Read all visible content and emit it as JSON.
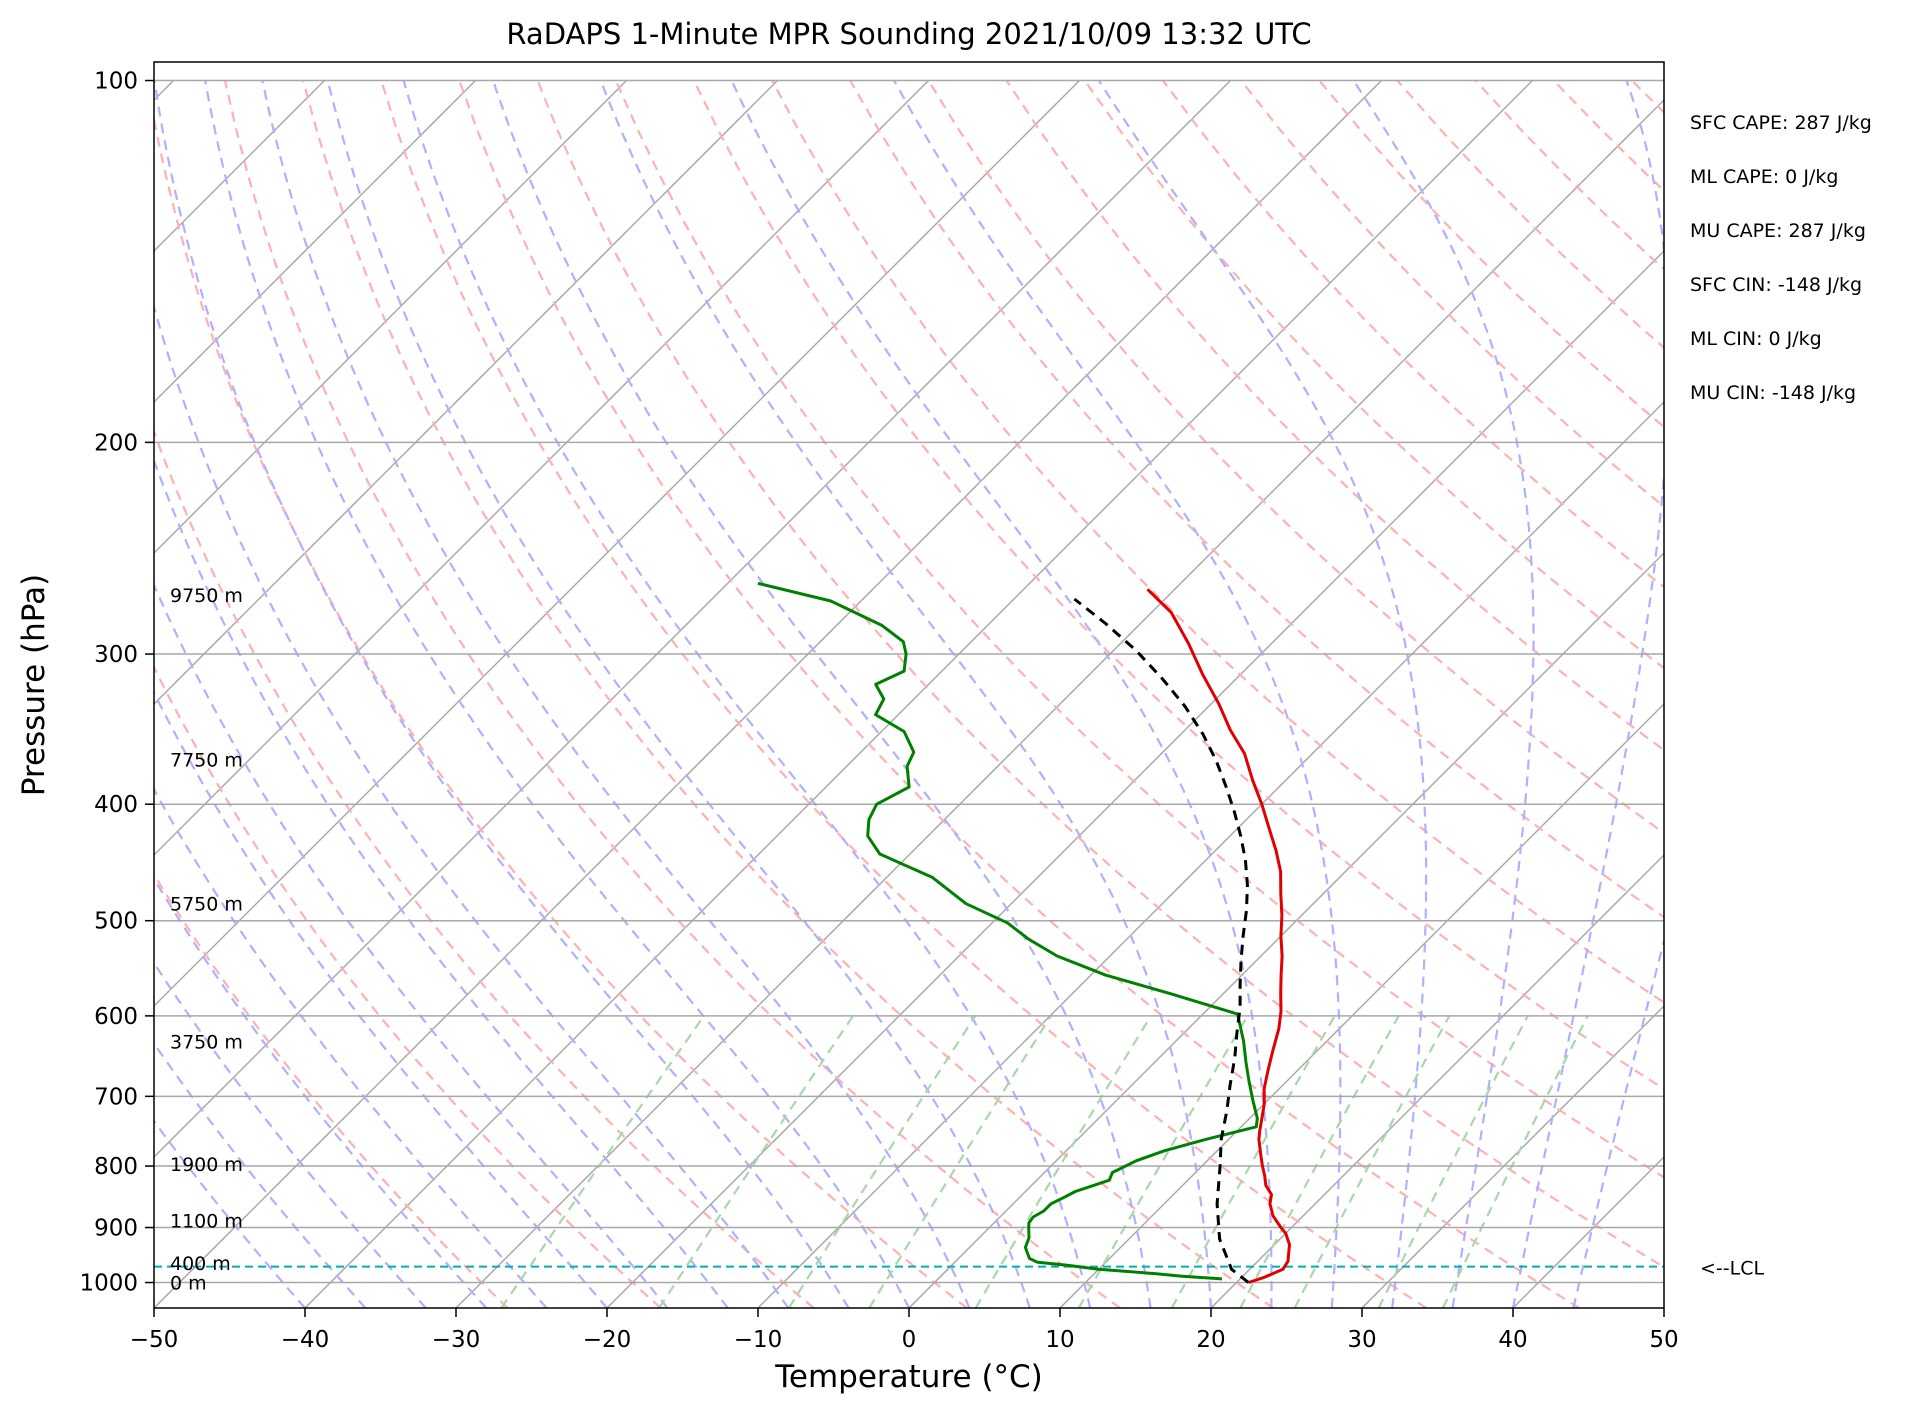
{
  "chart_data": {
    "type": "line",
    "title": "RaDAPS 1-Minute MPR Sounding 2021/10/09 13:32 UTC",
    "xlabel": "Temperature (°C)",
    "ylabel": "Pressure (hPa)",
    "xlim": [
      -50,
      50
    ],
    "ylim": [
      1050,
      100
    ],
    "y_scale": "log",
    "x_ticks": [
      "−50",
      "−40",
      "−30",
      "−20",
      "−10",
      "0",
      "10",
      "20",
      "30",
      "40",
      "50"
    ],
    "y_ticks": [
      "100",
      "200",
      "300",
      "400",
      "500",
      "600",
      "700",
      "800",
      "900",
      "1000"
    ],
    "grid": true,
    "skew": true,
    "series": [
      {
        "color": "#e00000",
        "points": [
          [
            20.8,
            1000
          ],
          [
            21.5,
            990
          ],
          [
            22.2,
            975
          ],
          [
            22.0,
            960
          ],
          [
            21.5,
            945
          ],
          [
            21.0,
            930
          ],
          [
            20.0,
            910
          ],
          [
            19.3,
            900
          ],
          [
            18.0,
            880
          ],
          [
            17.0,
            860
          ],
          [
            16.5,
            845
          ],
          [
            15.5,
            830
          ],
          [
            14.8,
            815
          ],
          [
            14.0,
            800
          ],
          [
            13.0,
            780
          ],
          [
            12.0,
            760
          ],
          [
            11.5,
            748
          ],
          [
            11.0,
            735
          ],
          [
            10.0,
            710
          ],
          [
            9.0,
            690
          ],
          [
            8.0,
            665
          ],
          [
            7.0,
            640
          ],
          [
            6.0,
            615
          ],
          [
            5.0,
            595
          ],
          [
            3.8,
            575
          ],
          [
            2.6,
            555
          ],
          [
            1.4,
            535
          ],
          [
            0.0,
            515
          ],
          [
            -1.3,
            495
          ],
          [
            -2.8,
            475
          ],
          [
            -4.3,
            455
          ],
          [
            -6.0,
            437
          ],
          [
            -7.8,
            420
          ],
          [
            -10.0,
            400
          ],
          [
            -12.2,
            382
          ],
          [
            -14.5,
            363
          ],
          [
            -17.0,
            347
          ],
          [
            -19.5,
            330
          ],
          [
            -22.5,
            312
          ],
          [
            -25.5,
            294
          ],
          [
            -28.7,
            277
          ],
          [
            -31.8,
            265
          ]
        ]
      },
      {
        "color": "#008000",
        "points": [
          [
            18.8,
            993
          ],
          [
            16.0,
            988
          ],
          [
            14.0,
            983
          ],
          [
            10.0,
            975
          ],
          [
            7.5,
            967
          ],
          [
            5.5,
            962
          ],
          [
            4.7,
            955
          ],
          [
            4.2,
            945
          ],
          [
            3.7,
            935
          ],
          [
            3.3,
            918
          ],
          [
            2.6,
            900
          ],
          [
            2.3,
            892
          ],
          [
            2.2,
            882
          ],
          [
            2.5,
            872
          ],
          [
            2.5,
            860
          ],
          [
            3.0,
            848
          ],
          [
            3.3,
            840
          ],
          [
            4.8,
            822
          ],
          [
            4.5,
            810
          ],
          [
            5.3,
            792
          ],
          [
            6.5,
            777
          ],
          [
            8.5,
            760
          ],
          [
            11.0,
            742
          ],
          [
            10.5,
            730
          ],
          [
            9.0,
            705
          ],
          [
            7.5,
            680
          ],
          [
            6.0,
            655
          ],
          [
            4.5,
            630
          ],
          [
            3.0,
            608
          ],
          [
            2.3,
            598
          ],
          [
            -3.5,
            575
          ],
          [
            -9.0,
            555
          ],
          [
            -13.5,
            535
          ],
          [
            -16.5,
            518
          ],
          [
            -19.0,
            502
          ],
          [
            -23.0,
            484
          ],
          [
            -27.0,
            460
          ],
          [
            -32.0,
            440
          ],
          [
            -34.0,
            425
          ],
          [
            -35.0,
            412
          ],
          [
            -35.5,
            400
          ],
          [
            -34.5,
            387
          ],
          [
            -36.0,
            372
          ],
          [
            -36.5,
            362
          ],
          [
            -38.5,
            348
          ],
          [
            -41.5,
            337
          ],
          [
            -42.0,
            327
          ],
          [
            -43.5,
            318
          ],
          [
            -42.5,
            310
          ],
          [
            -43.5,
            300
          ],
          [
            -44.5,
            293
          ],
          [
            -47.0,
            284
          ],
          [
            -52.0,
            271
          ],
          [
            -58.0,
            262
          ]
        ]
      }
    ],
    "parcel_path": {
      "color": "#000000",
      "dashed": true,
      "points": [
        [
          20.8,
          1000
        ],
        [
          18.8,
          975
        ],
        [
          16.0,
          920
        ],
        [
          13.5,
          860
        ],
        [
          11.2,
          800
        ],
        [
          9.5,
          760
        ],
        [
          8.0,
          720
        ],
        [
          6.5,
          685
        ],
        [
          5.0,
          650
        ],
        [
          3.5,
          620
        ],
        [
          2.0,
          590
        ],
        [
          0.5,
          565
        ],
        [
          -1.0,
          540
        ],
        [
          -2.5,
          515
        ],
        [
          -4.0,
          490
        ],
        [
          -5.6,
          467
        ],
        [
          -7.4,
          445
        ],
        [
          -9.3,
          425
        ],
        [
          -11.3,
          406
        ],
        [
          -13.5,
          387
        ],
        [
          -15.9,
          368
        ],
        [
          -18.5,
          350
        ],
        [
          -21.5,
          332
        ],
        [
          -24.8,
          315
        ],
        [
          -28.5,
          298
        ],
        [
          -32.3,
          283
        ],
        [
          -36.0,
          270
        ]
      ]
    },
    "lcl": {
      "pressure": 970,
      "label": "<--LCL",
      "color": "#00b0b0"
    },
    "height_labels": [
      {
        "text": "9750 m",
        "pressure": 268
      },
      {
        "text": "7750 m",
        "pressure": 367
      },
      {
        "text": "5750 m",
        "pressure": 484
      },
      {
        "text": "3750 m",
        "pressure": 630
      },
      {
        "text": "1900 m",
        "pressure": 797
      },
      {
        "text": "1100 m",
        "pressure": 888
      },
      {
        "text": "400 m",
        "pressure": 963
      },
      {
        "text": "0 m",
        "pressure": 1000
      }
    ],
    "indices": [
      {
        "text": "SFC CAPE: 287 J/kg"
      },
      {
        "text": "ML CAPE: 0 J/kg"
      },
      {
        "text": "MU CAPE: 287 J/kg"
      },
      {
        "text": "SFC CIN: -148 J/kg"
      },
      {
        "text": "ML CIN: 0 J/kg"
      },
      {
        "text": "MU CIN: -148 J/kg"
      }
    ],
    "background_lines": {
      "isotherm_color": "#a8a8a8",
      "dry_adiabat_color": "#ffb0b0",
      "moist_adiabat_color": "#b0b0ff",
      "mixing_ratio_color": "#a8d8a8"
    }
  }
}
